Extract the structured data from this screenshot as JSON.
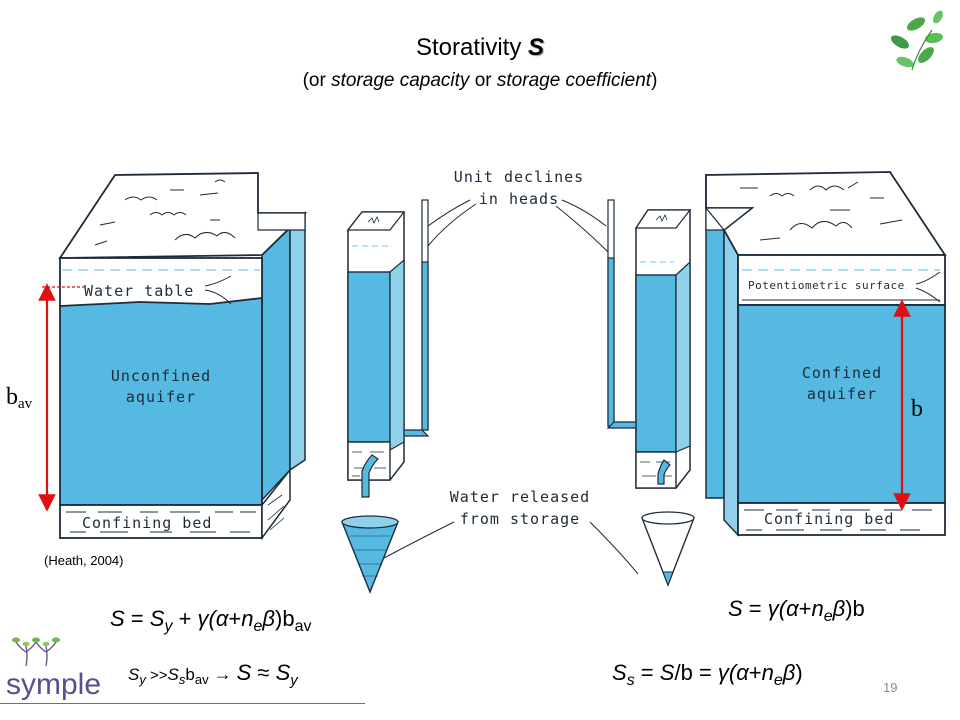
{
  "slide": {
    "title_prefix": "Storativity ",
    "title_symbol": "S",
    "subtitle_open": "(or ",
    "subtitle_term1": "storage capacity",
    "subtitle_or": " or ",
    "subtitle_term2": "storage coefficient",
    "subtitle_close": ")",
    "page_number": "19",
    "citation": "(Heath, 2004)",
    "logo_text": "symple"
  },
  "diagram": {
    "label_water_table": "Water  table",
    "label_unconfined_1": "Unconfined",
    "label_unconfined_2": "aquifer",
    "label_confining_bed_left": "Confining  bed",
    "label_unit_declines_1": "Unit  declines",
    "label_unit_declines_2": "in  heads",
    "label_water_released_1": "Water  released",
    "label_water_released_2": "from  storage",
    "label_potentiometric": "Potentiometric  surface",
    "label_confined_1": "Confined",
    "label_confined_2": "aquifer",
    "label_confining_bed_right": "Confining  bed",
    "label_bav_base": "b",
    "label_bav_sub": "av",
    "label_b": "b"
  },
  "equations": {
    "eq_unconfined": {
      "s": "S",
      "eq": " =  ",
      "sy_s": "S",
      "sy_sub": "y",
      "plus": " + ",
      "gamma": "γ(",
      "alpha": "α",
      "plus2": "+",
      "n": "n",
      "n_sub": "e",
      "beta": "β",
      "close": ")b",
      "bav_sub": "av"
    },
    "eq_approx": {
      "sy_s": "S",
      "sy_sub": "y",
      "gg": " >>",
      "ss_s": "S",
      "ss_sub": "s",
      "b": "b",
      "b_sub": "av",
      "arrow": "  →   ",
      "s": "S",
      "approx": " ≈ ",
      "sy2_s": "S",
      "sy2_sub": "y"
    },
    "eq_confined": {
      "s": "S",
      "eq": " =  ",
      "gamma": "γ(",
      "alpha": "α",
      "plus": "+",
      "n": "n",
      "n_sub": "e",
      "beta": "β",
      "close": ")b"
    },
    "eq_ss": {
      "ss_s": "S",
      "ss_sub": "s",
      "eq": " = ",
      "s": "S",
      "slash": "/b =  ",
      "gamma": "γ(",
      "alpha": "α",
      "plus": "+",
      "n": "n",
      "n_sub": "e",
      "beta": "β",
      "close": ")"
    }
  },
  "colors": {
    "water": "#55b9e2",
    "water_light": "#cfe9f5",
    "outline": "#1d2b3a",
    "arrow_red": "#e01010",
    "leaf_green": "#4aa84a"
  }
}
